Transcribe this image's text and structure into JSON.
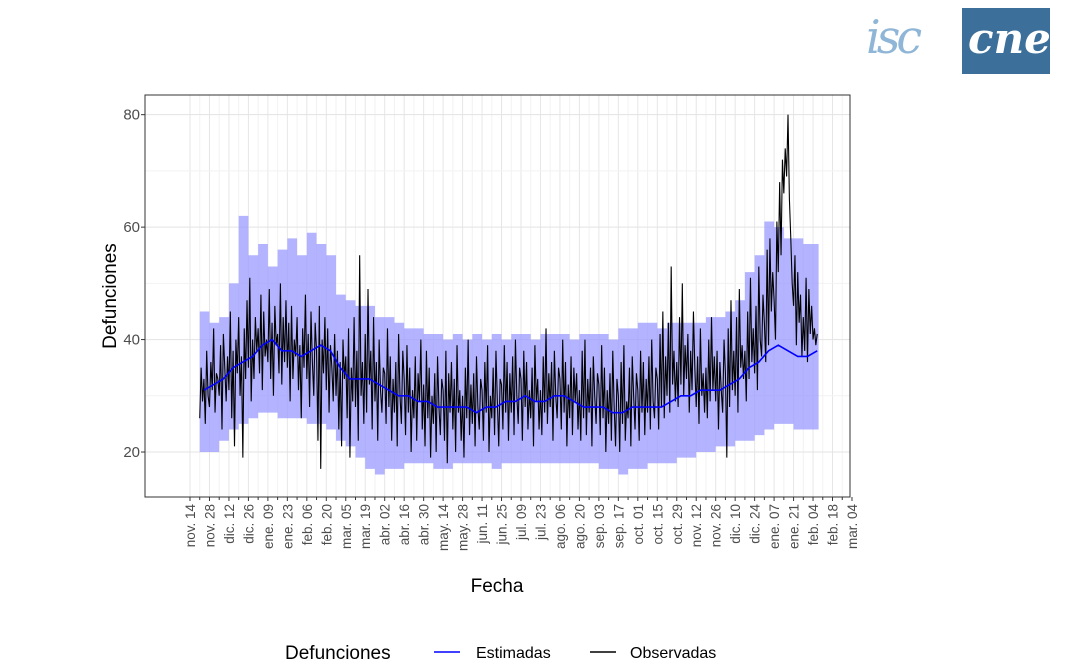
{
  "logo": {
    "left_text": "isc",
    "right_text": "cne",
    "colors": {
      "left": "#8fb6d6",
      "box": "#3c6f99"
    }
  },
  "chart_data": {
    "type": "line",
    "xlabel": "Fecha",
    "ylabel": "Defunciones",
    "ylim": [
      12,
      83.5
    ],
    "y_ticks": [
      20,
      40,
      60,
      80
    ],
    "x_ticks": [
      "nov. 14",
      "nov. 28",
      "dic. 12",
      "dic. 26",
      "ene. 09",
      "ene. 23",
      "feb. 06",
      "feb. 20",
      "mar. 05",
      "mar. 19",
      "abr. 02",
      "abr. 16",
      "abr. 30",
      "may. 14",
      "may. 28",
      "jun. 11",
      "jun. 25",
      "jul. 09",
      "jul. 23",
      "ago. 06",
      "ago. 20",
      "sep. 03",
      "sep. 17",
      "oct. 01",
      "oct. 15",
      "oct. 29",
      "nov. 12",
      "nov. 26",
      "dic. 10",
      "dic. 24",
      "ene. 07",
      "ene. 21",
      "feb. 04",
      "feb. 18",
      "mar. 04"
    ],
    "grid": true,
    "legend": {
      "title": "Defunciones",
      "position": "bottom",
      "entries": [
        {
          "name": "Estimadas",
          "color": "#0000ff"
        },
        {
          "name": "Observadas",
          "color": "#000000"
        }
      ]
    },
    "band_color": "#9999ff",
    "series_fields": [
      "week_start",
      "estimadas",
      "band_low",
      "band_high",
      "observadas_daily"
    ],
    "weeks": [
      [
        "nov. 21",
        31,
        20,
        45,
        [
          26,
          35,
          29,
          33,
          25,
          38,
          30
        ]
      ],
      [
        "nov. 28",
        32,
        20,
        43,
        [
          28,
          36,
          31,
          42,
          27,
          34,
          33
        ]
      ],
      [
        "dic. 05",
        33,
        22,
        44,
        [
          30,
          39,
          24,
          41,
          35,
          29,
          37
        ]
      ],
      [
        "dic. 12",
        35,
        24,
        50,
        [
          31,
          45,
          26,
          38,
          21,
          40,
          34
        ]
      ],
      [
        "dic. 19",
        36,
        25,
        62,
        [
          44,
          30,
          37,
          19,
          42,
          33,
          47
        ]
      ],
      [
        "dic. 26",
        37,
        26,
        55,
        [
          35,
          51,
          29,
          40,
          33,
          44,
          38
        ]
      ],
      [
        "ene. 02",
        39,
        27,
        57,
        [
          42,
          34,
          48,
          31,
          45,
          37,
          40
        ]
      ],
      [
        "ene. 09",
        40,
        27,
        53,
        [
          36,
          49,
          33,
          43,
          30,
          46,
          39
        ]
      ],
      [
        "ene. 16",
        38,
        26,
        56,
        [
          41,
          34,
          50,
          32,
          44,
          36,
          47
        ]
      ],
      [
        "ene. 23",
        38,
        26,
        58,
        [
          35,
          43,
          29,
          46,
          33,
          40,
          37
        ]
      ],
      [
        "ene. 30",
        37,
        26,
        55,
        [
          44,
          31,
          39,
          26,
          42,
          35,
          48
        ]
      ],
      [
        "feb. 06",
        38,
        25,
        59,
        [
          33,
          41,
          28,
          45,
          36,
          30,
          43
        ]
      ],
      [
        "feb. 13",
        39,
        25,
        57,
        [
          38,
          22,
          46,
          17,
          40,
          34,
          44
        ]
      ],
      [
        "feb. 20",
        38,
        24,
        55,
        [
          31,
          42,
          27,
          39,
          35,
          29,
          41
        ]
      ],
      [
        "feb. 27",
        35,
        22,
        48,
        [
          30,
          38,
          24,
          36,
          21,
          40,
          33
        ]
      ],
      [
        "mar. 05",
        33,
        21,
        47,
        [
          37,
          26,
          42,
          19,
          35,
          29,
          44
        ]
      ],
      [
        "mar. 12",
        33,
        19,
        46,
        [
          28,
          38,
          22,
          55,
          30,
          36,
          25
        ]
      ],
      [
        "mar. 19",
        33,
        17,
        46,
        [
          41,
          27,
          49,
          32,
          38,
          24,
          44
        ]
      ],
      [
        "mar. 26",
        32,
        16,
        44,
        [
          29,
          36,
          22,
          40,
          31,
          27,
          35
        ]
      ],
      [
        "abr. 02",
        31,
        17,
        44,
        [
          34,
          25,
          42,
          28,
          37,
          22,
          33
        ]
      ],
      [
        "abr. 09",
        30,
        17,
        43,
        [
          27,
          36,
          21,
          41,
          30,
          25,
          38
        ]
      ],
      [
        "abr. 16",
        30,
        18,
        42,
        [
          33,
          23,
          39,
          27,
          35,
          20,
          31
        ]
      ],
      [
        "abr. 23",
        29,
        18,
        42,
        [
          26,
          37,
          22,
          34,
          29,
          40,
          24
        ]
      ],
      [
        "abr. 30",
        29,
        18,
        41,
        [
          32,
          21,
          38,
          26,
          35,
          19,
          30
        ]
      ],
      [
        "may. 07",
        28,
        17,
        41,
        [
          25,
          34,
          20,
          37,
          28,
          23,
          33
        ]
      ],
      [
        "may. 14",
        28,
        17,
        40,
        [
          31,
          22,
          38,
          18,
          34,
          27,
          36
        ]
      ],
      [
        "may. 21",
        28,
        18,
        41,
        [
          24,
          33,
          20,
          39,
          27,
          31,
          22
        ]
      ],
      [
        "may. 28",
        28,
        18,
        40,
        [
          30,
          19,
          35,
          26,
          40,
          23,
          32
        ]
      ],
      [
        "jun. 04",
        27,
        18,
        41,
        [
          25,
          34,
          21,
          37,
          28,
          24,
          33
        ]
      ],
      [
        "jun. 11",
        28,
        18,
        40,
        [
          31,
          22,
          36,
          27,
          39,
          20,
          30
        ]
      ],
      [
        "jun. 18",
        28,
        17,
        41,
        [
          26,
          35,
          23,
          38,
          29,
          21,
          33
        ]
      ],
      [
        "jun. 25",
        29,
        18,
        40,
        [
          32,
          24,
          39,
          27,
          36,
          22,
          34
        ]
      ],
      [
        "jul. 02",
        29,
        18,
        41,
        [
          27,
          37,
          23,
          40,
          30,
          25,
          35
        ]
      ],
      [
        "jul. 09",
        30,
        18,
        41,
        [
          33,
          22,
          38,
          28,
          36,
          24,
          31
        ]
      ],
      [
        "jul. 16",
        29,
        18,
        40,
        [
          26,
          35,
          21,
          39,
          29,
          33,
          24
        ]
      ],
      [
        "jul. 23",
        29,
        18,
        41,
        [
          31,
          23,
          37,
          27,
          42,
          25,
          34
        ]
      ],
      [
        "jul. 30",
        30,
        18,
        41,
        [
          28,
          36,
          22,
          38,
          30,
          26,
          35
        ]
      ],
      [
        "ago. 06",
        30,
        18,
        41,
        [
          33,
          24,
          40,
          27,
          36,
          21,
          32
        ]
      ],
      [
        "ago. 13",
        29,
        18,
        40,
        [
          26,
          37,
          23,
          35,
          29,
          34,
          24
        ]
      ],
      [
        "ago. 20",
        28,
        18,
        41,
        [
          31,
          22,
          38,
          26,
          40,
          23,
          33
        ]
      ],
      [
        "ago. 27",
        28,
        18,
        41,
        [
          27,
          35,
          21,
          37,
          30,
          25,
          34
        ]
      ],
      [
        "sep. 03",
        28,
        17,
        41,
        [
          32,
          23,
          39,
          26,
          35,
          20,
          31
        ]
      ],
      [
        "sep. 10",
        27,
        17,
        40,
        [
          25,
          34,
          22,
          38,
          28,
          21,
          33
        ]
      ],
      [
        "sep. 17",
        27,
        16,
        42,
        [
          30,
          20,
          36,
          25,
          39,
          22,
          29
        ]
      ],
      [
        "sep. 24",
        28,
        17,
        42,
        [
          26,
          35,
          21,
          37,
          30,
          24,
          34
        ]
      ],
      [
        "oct. 01",
        28,
        17,
        43,
        [
          31,
          22,
          38,
          27,
          36,
          23,
          33
        ]
      ],
      [
        "oct. 08",
        28,
        18,
        43,
        [
          27,
          37,
          24,
          40,
          29,
          26,
          35
        ]
      ],
      [
        "oct. 15",
        28,
        18,
        42,
        [
          33,
          24,
          41,
          28,
          45,
          26,
          37
        ]
      ],
      [
        "oct. 22",
        29,
        18,
        43,
        [
          30,
          43,
          27,
          53,
          32,
          38,
          29
        ]
      ],
      [
        "oct. 29",
        30,
        19,
        43,
        [
          36,
          28,
          44,
          32,
          50,
          30,
          39
        ]
      ],
      [
        "nov. 05",
        30,
        19,
        43,
        [
          33,
          41,
          27,
          38,
          31,
          45,
          35
        ]
      ],
      [
        "nov. 12",
        31,
        20,
        43,
        [
          28,
          37,
          25,
          42,
          30,
          34,
          27
        ]
      ],
      [
        "nov. 19",
        31,
        20,
        44,
        [
          35,
          26,
          40,
          29,
          44,
          31,
          37
        ]
      ],
      [
        "nov. 26",
        31,
        21,
        44,
        [
          29,
          38,
          24,
          36,
          31,
          27,
          40
        ]
      ],
      [
        "dic. 03",
        32,
        21,
        45,
        [
          34,
          19,
          42,
          28,
          47,
          31,
          38
        ]
      ],
      [
        "dic. 10",
        33,
        22,
        47,
        [
          30,
          44,
          27,
          49,
          35,
          39,
          33
        ]
      ],
      [
        "dic. 17",
        35,
        22,
        52,
        [
          38,
          29,
          45,
          33,
          51,
          36,
          42
        ]
      ],
      [
        "dic. 24",
        36,
        23,
        55,
        [
          34,
          46,
          31,
          53,
          40,
          37,
          48
        ]
      ],
      [
        "dic. 31",
        38,
        24,
        61,
        [
          43,
          36,
          56,
          39,
          58,
          45,
          52
        ]
      ],
      [
        "ene. 07",
        39,
        25,
        60,
        [
          47,
          40,
          61,
          52,
          68,
          55,
          72
        ]
      ],
      [
        "ene. 14",
        38,
        25,
        58,
        [
          66,
          74,
          69,
          80,
          65,
          58,
          50
        ]
      ],
      [
        "ene. 21",
        37,
        24,
        58,
        [
          46,
          55,
          39,
          52,
          43,
          48,
          37
        ]
      ],
      [
        "ene. 28",
        37,
        24,
        57,
        [
          44,
          38,
          51,
          36,
          49,
          41,
          46
        ]
      ],
      [
        "feb. 04",
        38,
        24,
        57,
        [
          40,
          42,
          39,
          41
        ]
      ]
    ]
  }
}
